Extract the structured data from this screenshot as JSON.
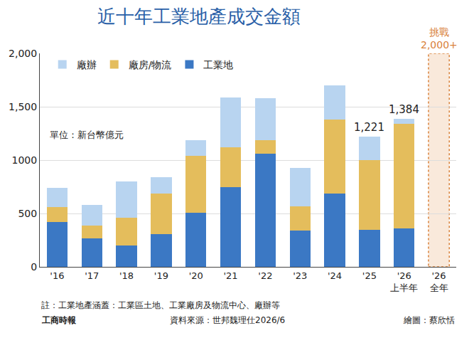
{
  "chart_data": {
    "type": "bar",
    "title": "近十年工業地產成交金額",
    "subtitle": "單位：新台幣億元",
    "stacked": true,
    "grid": true,
    "legend": "top",
    "categories": [
      "'16",
      "'17",
      "'18",
      "'19",
      "'20",
      "'21",
      "'22",
      "'23",
      "'24",
      "'25",
      "'26 上半年",
      "'26 全年"
    ],
    "series": [
      {
        "name": "工業地",
        "color": "#3b78c4",
        "values": [
          420,
          270,
          200,
          310,
          510,
          750,
          1060,
          340,
          690,
          350,
          360,
          null
        ]
      },
      {
        "name": "廠房/物流",
        "color": "#e4bd5c",
        "values": [
          140,
          120,
          260,
          380,
          530,
          370,
          130,
          230,
          690,
          650,
          980,
          null
        ]
      },
      {
        "name": "廠辦",
        "color": "#b8d4f0",
        "values": [
          180,
          190,
          340,
          150,
          150,
          470,
          390,
          360,
          320,
          221,
          44,
          null
        ]
      }
    ],
    "total_labels": [
      {
        "category": "'25",
        "value": 1221,
        "label": "1,221"
      },
      {
        "category": "'26 上半年",
        "value": 1384,
        "label": "1,384"
      }
    ],
    "target": {
      "category": "'26 全年",
      "value": 2000,
      "label": "挑戰 2,000+",
      "color": "#d9823b"
    },
    "ylim": [
      0,
      2000
    ],
    "yticks": [
      0,
      500,
      1000,
      {
        "value": 1500,
        "label": "1,500"
      },
      {
        "value": 2000,
        "label": "2,000"
      }
    ],
    "annotations": [
      "註：工業地產涵蓋：工業區土地、工業廠房及物流中心、廠辦等",
      "工商時報",
      "資料來源：世邦魏理仕2026/6",
      "繪圖：蔡欣恬"
    ]
  }
}
